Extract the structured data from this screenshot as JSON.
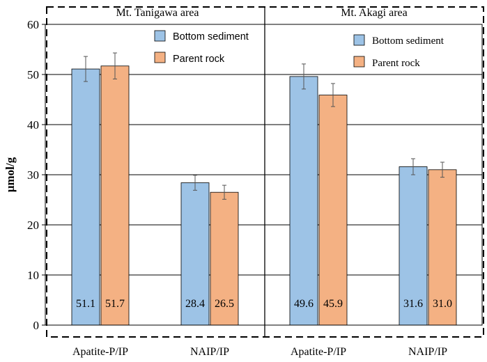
{
  "chart_data": {
    "type": "bar",
    "ylabel": "μmol/g",
    "ylim": [
      0,
      60
    ],
    "yticks": [
      0,
      10,
      20,
      30,
      40,
      50,
      60
    ],
    "grid": true,
    "colors": {
      "Bottom sediment": "#9dc3e6",
      "Parent rock": "#f4b183"
    },
    "panels": [
      {
        "title": "Mt. Tanigawa area",
        "categories": [
          "Apatite-P/IP",
          "NAIP/IP"
        ],
        "series": [
          {
            "name": "Bottom sediment",
            "values": [
              51.1,
              28.4
            ],
            "errors": [
              2.5,
              1.5
            ],
            "labels": [
              "51.1",
              "28.4"
            ]
          },
          {
            "name": "Parent rock",
            "values": [
              51.7,
              26.5
            ],
            "errors": [
              2.6,
              1.4
            ],
            "labels": [
              "51.7",
              "26.5"
            ]
          }
        ],
        "legend": [
          "Bottom sediment",
          "Parent rock"
        ]
      },
      {
        "title": "Mt. Akagi area",
        "categories": [
          "Apatite-P/IP",
          "NAIP/IP"
        ],
        "series": [
          {
            "name": "Bottom sediment",
            "values": [
              49.6,
              31.6
            ],
            "errors": [
              2.5,
              1.6
            ],
            "labels": [
              "49.6",
              "31.6"
            ]
          },
          {
            "name": "Parent rock",
            "values": [
              45.9,
              31.0
            ],
            "errors": [
              2.3,
              1.5
            ],
            "labels": [
              "45.9",
              "31.0"
            ]
          }
        ],
        "legend": [
          "Bottom sediment",
          "Parent rock"
        ]
      }
    ]
  }
}
